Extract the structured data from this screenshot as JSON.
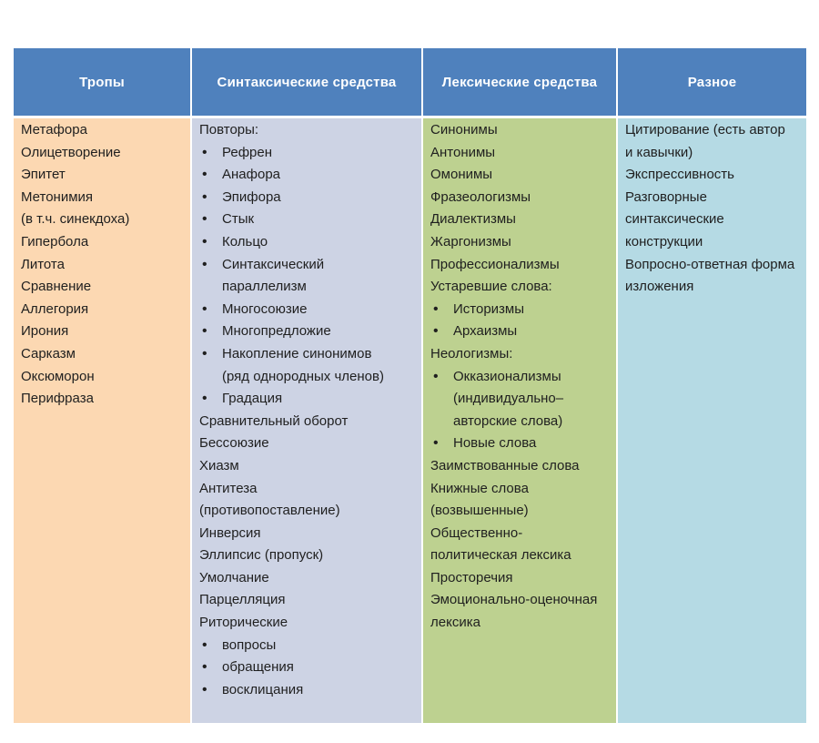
{
  "colors": {
    "header_bg": "#4f81bd",
    "header_text": "#ffffff",
    "body_text": "#1f1f1f",
    "page_bg": "#ffffff"
  },
  "table": {
    "header_bg": "#4f81bd",
    "columns": [
      {
        "header": "Тропы",
        "bg": "#fcd8b2",
        "lines": [
          {
            "text": "Метафора"
          },
          {
            "text": "Олицетворение"
          },
          {
            "text": "Эпитет"
          },
          {
            "text": "Метонимия"
          },
          {
            "text": "(в т.ч. синекдоха)"
          },
          {
            "text": "Гипербола"
          },
          {
            "text": "Литота"
          },
          {
            "text": "Сравнение"
          },
          {
            "text": "Аллегория"
          },
          {
            "text": "Ирония"
          },
          {
            "text": "Сарказм"
          },
          {
            "text": "Оксюморон"
          },
          {
            "text": "Перифраза"
          }
        ]
      },
      {
        "header": "Синтаксические средства",
        "bg": "#cdd3e4",
        "lines": [
          {
            "text": "Повторы:"
          },
          {
            "text": "Рефрен",
            "bullet": true
          },
          {
            "text": "Анафора",
            "bullet": true
          },
          {
            "text": "Эпифора",
            "bullet": true
          },
          {
            "text": "Стык",
            "bullet": true
          },
          {
            "text": "Кольцо",
            "bullet": true
          },
          {
            "text": "Синтаксический",
            "bullet": true
          },
          {
            "text": "параллелизм",
            "indent": true
          },
          {
            "text": "Многосоюзие",
            "bullet": true
          },
          {
            "text": "Многопредложие",
            "bullet": true
          },
          {
            "text": "Накопление синонимов",
            "bullet": true
          },
          {
            "text": "(ряд однородных членов)",
            "indent": true
          },
          {
            "text": "Градация",
            "bullet": true
          },
          {
            "text": "Сравнительный оборот"
          },
          {
            "text": "Бессоюзие"
          },
          {
            "text": "Хиазм"
          },
          {
            "text": "Антитеза"
          },
          {
            "text": "(противопоставление)"
          },
          {
            "text": "Инверсия"
          },
          {
            "text": "Эллипсис (пропуск)"
          },
          {
            "text": "Умолчание"
          },
          {
            "text": "Парцелляция"
          },
          {
            "text": "Риторические"
          },
          {
            "text": "вопросы",
            "bullet": true
          },
          {
            "text": "обращения",
            "bullet": true
          },
          {
            "text": "восклицания",
            "bullet": true
          }
        ]
      },
      {
        "header": "Лексические средства",
        "bg": "#bdd190",
        "lines": [
          {
            "text": "Синонимы"
          },
          {
            "text": "Антонимы"
          },
          {
            "text": "Омонимы"
          },
          {
            "text": "Фразеологизмы"
          },
          {
            "text": "Диалектизмы"
          },
          {
            "text": "Жаргонизмы"
          },
          {
            "text": "Профессионализмы"
          },
          {
            "text": "Устаревшие слова:"
          },
          {
            "text": "Историзмы",
            "bullet": true
          },
          {
            "text": "Архаизмы",
            "bullet": true
          },
          {
            "text": "Неологизмы:"
          },
          {
            "text": "Окказионализмы",
            "bullet": true
          },
          {
            "text": "(индивидуально–",
            "indent": true
          },
          {
            "text": "авторские слова)",
            "indent": true
          },
          {
            "text": "Новые слова",
            "bullet": true
          },
          {
            "text": "Заимствованные слова"
          },
          {
            "text": "Книжные слова"
          },
          {
            "text": "(возвышенные)"
          },
          {
            "text": "Общественно-"
          },
          {
            "text": "политическая лексика"
          },
          {
            "text": "Просторечия"
          },
          {
            "text": "Эмоционально-оценочная"
          },
          {
            "text": "лексика"
          }
        ]
      },
      {
        "header": "Разное",
        "bg": "#b5dae4",
        "lines": [
          {
            "text": "Цитирование (есть автор"
          },
          {
            "text": "и кавычки)"
          },
          {
            "text": "Экспрессивность"
          },
          {
            "text": "Разговорные"
          },
          {
            "text": "синтаксические"
          },
          {
            "text": "конструкции"
          },
          {
            "text": "Вопросно-ответная форма"
          },
          {
            "text": "изложения"
          }
        ]
      }
    ]
  }
}
